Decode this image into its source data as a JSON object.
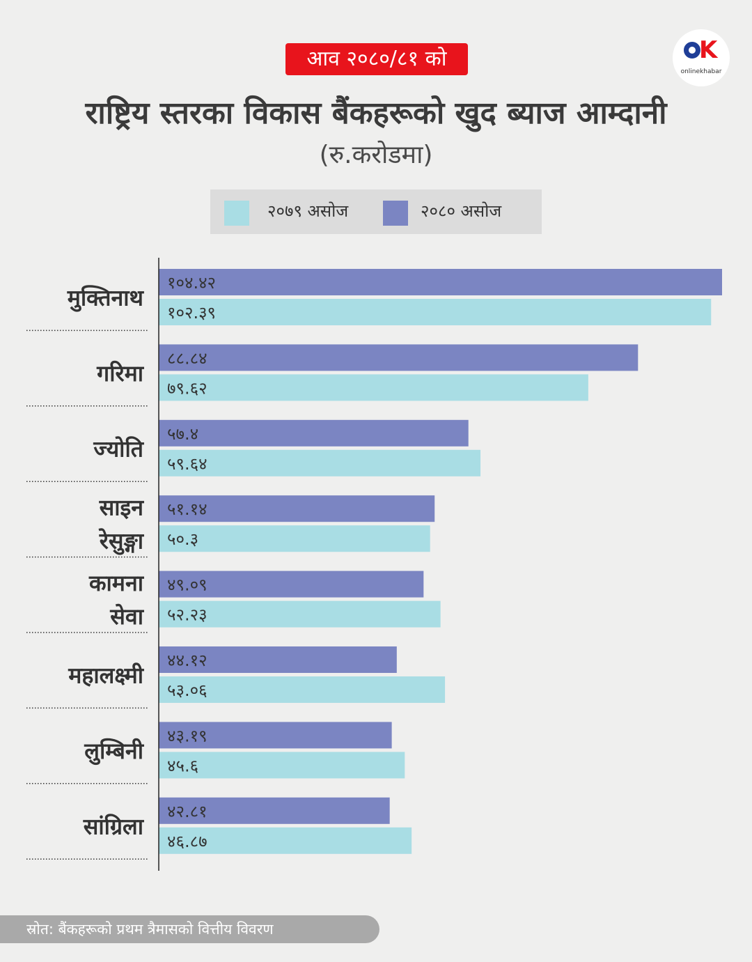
{
  "header": {
    "tag": "आव २०८०/८१ को",
    "title": "राष्ट्रिय स्तरका विकास बैंकहरूको खुद ब्याज आम्दानी",
    "subtitle": "(रु.करोडमा)"
  },
  "logo": {
    "brand": "onlinekhabar"
  },
  "colors": {
    "series_2079": "#a9dde4",
    "series_2080": "#7b85c2",
    "tag_bg": "#e8141c",
    "axis": "#333333"
  },
  "chart_data": {
    "type": "bar",
    "orientation": "horizontal",
    "legend_position": "top",
    "grid": false,
    "xlim": [
      0,
      104.42
    ],
    "categories": [
      [
        "मुक्तिनाथ"
      ],
      [
        "गरिमा"
      ],
      [
        "ज्योति"
      ],
      [
        "साइन",
        "रेसुङ्गा"
      ],
      [
        "कामना",
        "सेवा"
      ],
      [
        "महालक्ष्मी"
      ],
      [
        "लुम्बिनी"
      ],
      [
        "सांग्रिला"
      ]
    ],
    "series": [
      {
        "name": "२०८० असोज",
        "color": "#7b85c2",
        "values": [
          104.42,
          88.84,
          57.4,
          51.14,
          49.09,
          44.12,
          43.19,
          42.81
        ],
        "labels": [
          "१०४.४२",
          "८८.८४",
          "५७.४",
          "५१.१४",
          "४९.०९",
          "४४.१२",
          "४३.१९",
          "४२.८१"
        ]
      },
      {
        "name": "२०७९ असोज",
        "color": "#a9dde4",
        "values": [
          102.39,
          79.62,
          59.64,
          50.3,
          52.23,
          53.06,
          45.6,
          46.87
        ],
        "labels": [
          "१०२.३९",
          "७९.६२",
          "५९.६४",
          "५०.३",
          "५२.२३",
          "५३.०६",
          "४५.६",
          "४६.८७"
        ]
      }
    ]
  },
  "legend": {
    "items": [
      {
        "label": "२०७९ असोज",
        "color": "#a9dde4"
      },
      {
        "label": "२०८० असोज",
        "color": "#7b85c2"
      }
    ]
  },
  "footer": {
    "source": "स्रोत: बैंकहरूको प्रथम त्रैमासको वित्तीय विवरण"
  }
}
